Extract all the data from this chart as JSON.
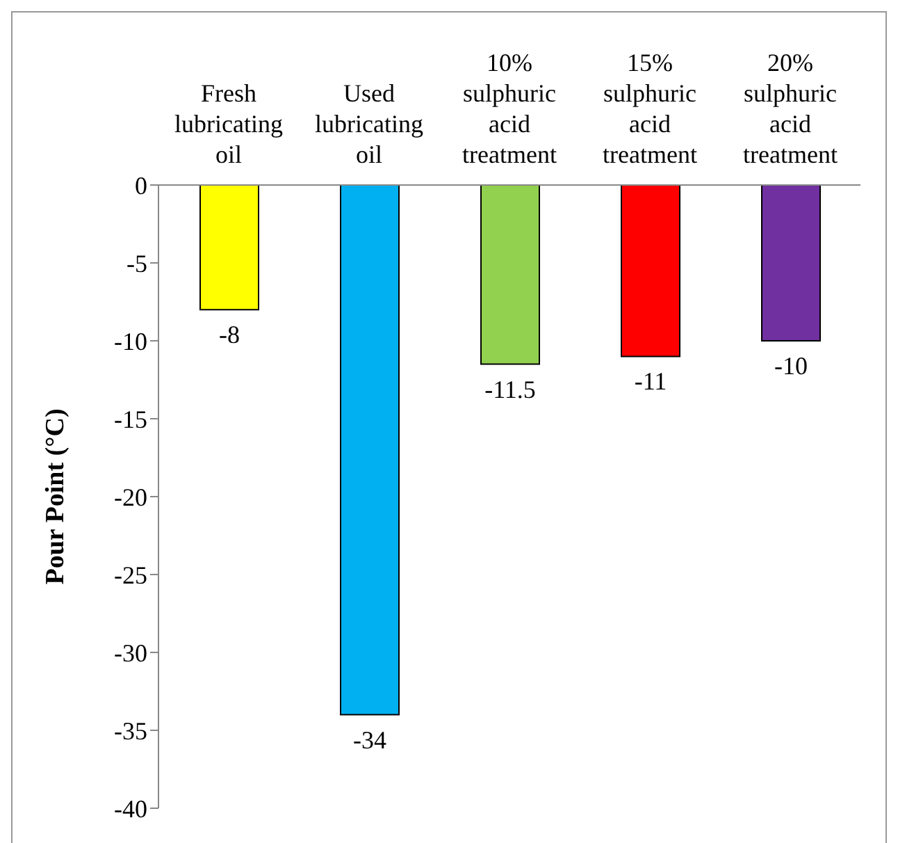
{
  "chart_data": {
    "type": "bar",
    "ylabel": "Pour Point (°C)",
    "categories": [
      "Fresh lubricating oil",
      "Used lubricating oil",
      "10% sulphuric acid treatment",
      "15% sulphuric acid treatment",
      "20% sulphuric acid treatment"
    ],
    "values": [
      -8,
      -34,
      -11.5,
      -11,
      -10
    ],
    "colors": [
      "#ffff00",
      "#00b0f0",
      "#92d050",
      "#ff0000",
      "#7030a0"
    ],
    "ylim": [
      -40,
      0
    ],
    "yticks": [
      0,
      -5,
      -10,
      -15,
      -20,
      -25,
      -30,
      -35,
      -40
    ],
    "data_labels": true
  }
}
